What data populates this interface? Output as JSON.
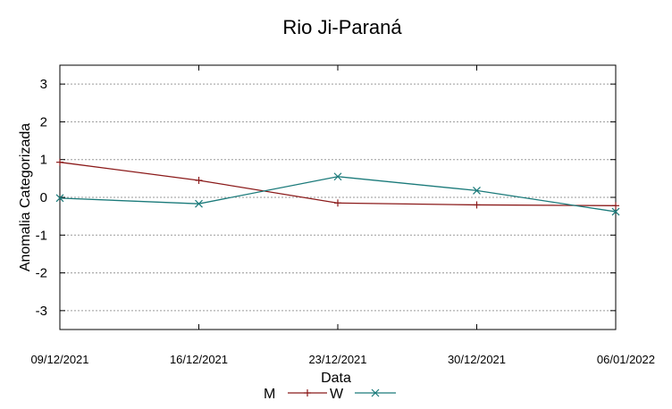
{
  "chart_data": {
    "type": "line",
    "title": "Rio Ji-Paraná",
    "xlabel": "Data",
    "ylabel": "Anomalia Categorizada",
    "x": [
      "09/12/2021",
      "16/12/2021",
      "23/12/2021",
      "30/12/2021",
      "06/01/2022"
    ],
    "ylim": [
      -3.5,
      3.5
    ],
    "yticks": [
      3,
      2,
      1,
      0,
      -1,
      -2,
      -3
    ],
    "grid": true,
    "legend_position": "bottom",
    "series": [
      {
        "name": "M",
        "color": "#8b1a1a",
        "marker": "plus",
        "values": [
          0.93,
          0.45,
          -0.15,
          -0.2,
          -0.22
        ]
      },
      {
        "name": "W",
        "color": "#1a7a7a",
        "marker": "cross",
        "values": [
          -0.02,
          -0.17,
          0.55,
          0.18,
          -0.38
        ]
      }
    ]
  }
}
